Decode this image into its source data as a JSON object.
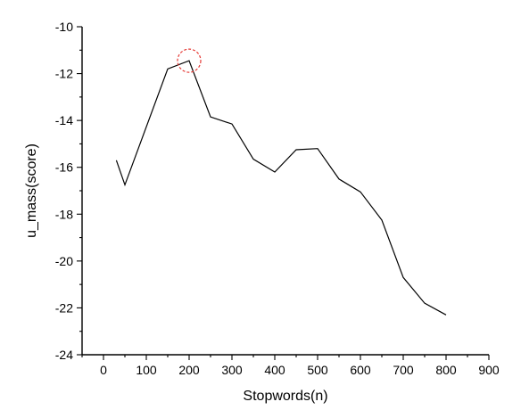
{
  "chart_data": {
    "type": "line",
    "title": "",
    "xlabel": "Stopwords(n)",
    "ylabel": "u_mass(score)",
    "xlim": [
      -50,
      900
    ],
    "ylim": [
      -24,
      -10
    ],
    "xticks": [
      0,
      100,
      200,
      300,
      400,
      500,
      600,
      700,
      800,
      900
    ],
    "yticks": [
      -10,
      -12,
      -14,
      -16,
      -18,
      -20,
      -22,
      -24
    ],
    "x": [
      30,
      50,
      150,
      200,
      250,
      300,
      350,
      400,
      450,
      500,
      550,
      600,
      650,
      700,
      750,
      800
    ],
    "y": [
      -15.7,
      -16.75,
      -11.8,
      -11.45,
      -13.85,
      -14.15,
      -15.65,
      -16.2,
      -15.25,
      -15.2,
      -16.5,
      -17.05,
      -18.25,
      -20.7,
      -21.8,
      -22.3
    ],
    "highlight": {
      "x": 200,
      "y": -11.45,
      "color": "#e53935"
    },
    "grid": false,
    "line_color": "#000000"
  }
}
